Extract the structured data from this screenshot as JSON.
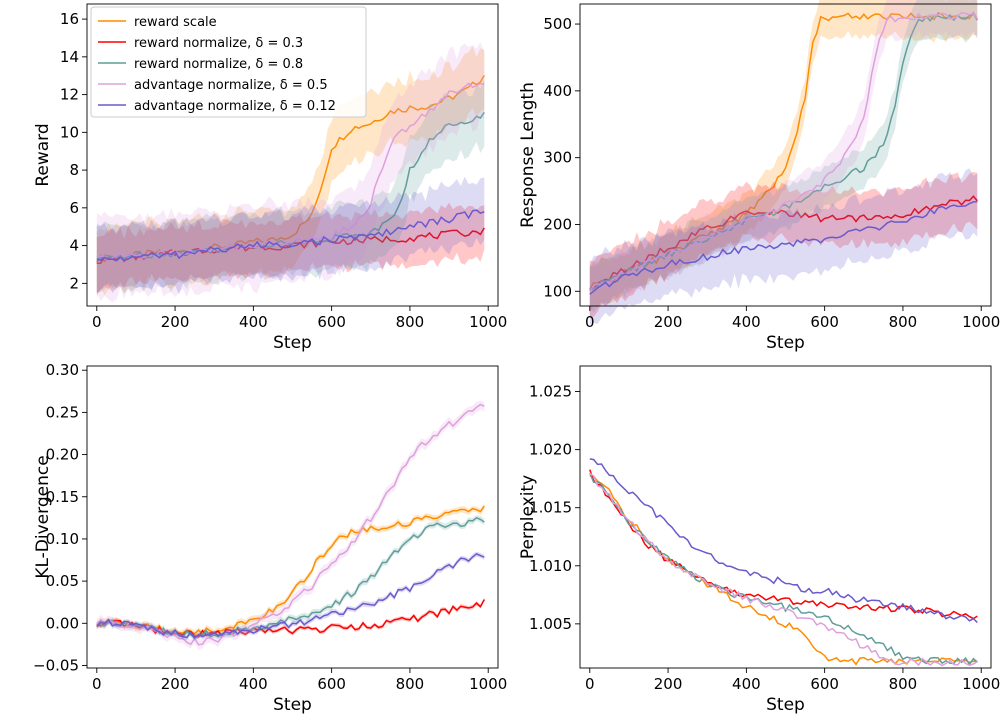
{
  "legend": {
    "entries": [
      {
        "label": "reward scale",
        "color": "#ff8c00"
      },
      {
        "label": "reward normalize, δ = 0.3",
        "color": "#ff0000"
      },
      {
        "label": "reward normalize, δ = 0.8",
        "color": "#5f9e99"
      },
      {
        "label": "advantage normalize, δ = 0.5",
        "color": "#dda0dd"
      },
      {
        "label": "advantage normalize, δ = 0.12",
        "color": "#6a5acd"
      }
    ],
    "placement": "top-left of first panel"
  },
  "chart_data": [
    {
      "type": "line",
      "xlabel": "Step",
      "ylabel": "Reward",
      "xlim": [
        -25,
        1025
      ],
      "ylim": [
        0.8,
        16.8
      ],
      "xticks": [
        0,
        200,
        400,
        600,
        800,
        1000
      ],
      "xtick_labels": [
        "0",
        "200",
        "400",
        "600",
        "800",
        "1000"
      ],
      "yticks": [
        2,
        4,
        6,
        8,
        10,
        12,
        14,
        16
      ],
      "ytick_labels": [
        "2",
        "4",
        "6",
        "8",
        "10",
        "12",
        "14",
        "16"
      ],
      "has_legend": true,
      "series": [
        {
          "name": "reward scale",
          "color": "#ff8c00",
          "band": 0.12,
          "x": [
            0,
            50,
            100,
            150,
            200,
            250,
            300,
            350,
            400,
            450,
            500,
            550,
            580,
            600,
            650,
            700,
            750,
            800,
            850,
            900,
            950,
            1000
          ],
          "y": [
            3.3,
            3.4,
            3.5,
            3.6,
            3.6,
            3.8,
            3.9,
            4.0,
            4.2,
            4.3,
            4.6,
            5.6,
            7.6,
            9.2,
            10.2,
            10.5,
            11.1,
            11.3,
            11.4,
            11.8,
            12.3,
            13.2
          ]
        },
        {
          "name": "reward normalize, δ = 0.3",
          "color": "#ff0000",
          "band": 0.1,
          "x": [
            0,
            100,
            200,
            300,
            400,
            500,
            600,
            700,
            800,
            900,
            1000
          ],
          "y": [
            3.2,
            3.4,
            3.6,
            3.8,
            3.9,
            4.0,
            4.2,
            4.3,
            4.4,
            4.6,
            4.8
          ]
        },
        {
          "name": "reward normalize, δ = 0.8",
          "color": "#5f9e99",
          "band": 0.12,
          "x": [
            0,
            100,
            200,
            300,
            400,
            500,
            600,
            700,
            750,
            780,
            800,
            850,
            900,
            950,
            1000
          ],
          "y": [
            3.3,
            3.5,
            3.6,
            3.8,
            4.0,
            4.2,
            4.4,
            4.7,
            5.3,
            6.5,
            8.0,
            9.5,
            10.4,
            10.7,
            11.0
          ]
        },
        {
          "name": "advantage normalize, δ = 0.5",
          "color": "#dda0dd",
          "band": 0.15,
          "x": [
            0,
            100,
            200,
            300,
            400,
            500,
            600,
            650,
            700,
            720,
            750,
            800,
            850,
            900,
            950,
            1000
          ],
          "y": [
            3.3,
            3.5,
            3.6,
            3.8,
            4.0,
            4.2,
            4.5,
            5.0,
            6.2,
            7.6,
            9.4,
            10.4,
            11.2,
            12.0,
            12.6,
            12.4
          ]
        },
        {
          "name": "advantage normalize, δ = 0.12",
          "color": "#6a5acd",
          "band": 0.12,
          "x": [
            0,
            100,
            200,
            300,
            400,
            500,
            600,
            700,
            800,
            900,
            1000
          ],
          "y": [
            3.2,
            3.4,
            3.5,
            3.8,
            4.0,
            4.1,
            4.3,
            4.5,
            5.0,
            5.4,
            5.9
          ]
        }
      ]
    },
    {
      "type": "line",
      "xlabel": "Step",
      "ylabel": "Response Length",
      "xlim": [
        -25,
        1025
      ],
      "ylim": [
        78,
        530
      ],
      "xticks": [
        0,
        200,
        400,
        600,
        800,
        1000
      ],
      "xtick_labels": [
        "0",
        "200",
        "400",
        "600",
        "800",
        "1000"
      ],
      "yticks": [
        100,
        200,
        300,
        400,
        500
      ],
      "ytick_labels": [
        "100",
        "200",
        "300",
        "400",
        "500"
      ],
      "has_legend": false,
      "series": [
        {
          "name": "reward scale",
          "color": "#ff8c00",
          "band": 0.08,
          "x": [
            0,
            100,
            200,
            300,
            400,
            450,
            500,
            520,
            550,
            570,
            590,
            620,
            700,
            800,
            900,
            1000
          ],
          "y": [
            105,
            130,
            155,
            185,
            215,
            245,
            285,
            320,
            390,
            470,
            508,
            511,
            512,
            512,
            512,
            512
          ]
        },
        {
          "name": "reward normalize, δ = 0.3",
          "color": "#ff0000",
          "band": 0.1,
          "x": [
            0,
            100,
            200,
            300,
            400,
            500,
            600,
            700,
            800,
            900,
            1000
          ],
          "y": [
            105,
            135,
            165,
            195,
            215,
            218,
            208,
            210,
            215,
            230,
            240
          ]
        },
        {
          "name": "reward normalize, δ = 0.8",
          "color": "#5f9e99",
          "band": 0.08,
          "x": [
            0,
            100,
            200,
            300,
            400,
            500,
            600,
            700,
            750,
            780,
            800,
            830,
            870,
            900,
            950,
            1000
          ],
          "y": [
            105,
            130,
            155,
            180,
            205,
            225,
            255,
            285,
            320,
            380,
            440,
            500,
            510,
            511,
            511,
            510
          ]
        },
        {
          "name": "advantage normalize, δ = 0.5",
          "color": "#dda0dd",
          "band": 0.08,
          "x": [
            0,
            100,
            200,
            300,
            400,
            500,
            600,
            650,
            700,
            720,
            740,
            760,
            800,
            850,
            900,
            1000
          ],
          "y": [
            105,
            130,
            155,
            180,
            205,
            230,
            265,
            300,
            360,
            420,
            480,
            505,
            511,
            512,
            512,
            511
          ]
        },
        {
          "name": "advantage normalize, δ = 0.12",
          "color": "#6a5acd",
          "band": 0.12,
          "x": [
            0,
            100,
            200,
            300,
            400,
            500,
            600,
            700,
            800,
            900,
            1000
          ],
          "y": [
            100,
            125,
            140,
            152,
            165,
            170,
            178,
            190,
            205,
            222,
            240
          ]
        }
      ]
    },
    {
      "type": "line",
      "xlabel": "Step",
      "ylabel": "KL-Divergence",
      "xlim": [
        -25,
        1025
      ],
      "ylim": [
        -0.053,
        0.305
      ],
      "xticks": [
        0,
        200,
        400,
        600,
        800,
        1000
      ],
      "xtick_labels": [
        "0",
        "200",
        "400",
        "600",
        "800",
        "1000"
      ],
      "yticks": [
        -0.05,
        0.0,
        0.05,
        0.1,
        0.15,
        0.2,
        0.25,
        0.3
      ],
      "ytick_labels": [
        "−0.05",
        "0.00",
        "0.05",
        "0.10",
        "0.15",
        "0.20",
        "0.25",
        "0.30"
      ],
      "has_legend": false,
      "series": [
        {
          "name": "reward scale",
          "color": "#ff8c00",
          "band": 0.012,
          "x": [
            0,
            50,
            100,
            150,
            200,
            250,
            300,
            350,
            400,
            450,
            500,
            550,
            600,
            650,
            700,
            750,
            800,
            850,
            900,
            950,
            1000
          ],
          "y": [
            0.0,
            0.0,
            -0.002,
            -0.006,
            -0.01,
            -0.01,
            -0.008,
            -0.003,
            0.005,
            0.015,
            0.035,
            0.065,
            0.095,
            0.108,
            0.113,
            0.115,
            0.12,
            0.125,
            0.13,
            0.133,
            0.135
          ]
        },
        {
          "name": "reward normalize, δ = 0.3",
          "color": "#ff0000",
          "band": 0.008,
          "x": [
            0,
            50,
            100,
            150,
            200,
            250,
            300,
            350,
            400,
            450,
            500,
            550,
            600,
            650,
            700,
            750,
            800,
            850,
            900,
            950,
            1000
          ],
          "y": [
            0.0,
            0.0,
            -0.003,
            -0.008,
            -0.012,
            -0.013,
            -0.012,
            -0.011,
            -0.01,
            -0.009,
            -0.008,
            -0.007,
            -0.006,
            -0.004,
            -0.002,
            0.001,
            0.004,
            0.01,
            0.015,
            0.02,
            0.025
          ]
        },
        {
          "name": "reward normalize, δ = 0.8",
          "color": "#5f9e99",
          "band": 0.012,
          "x": [
            0,
            50,
            100,
            150,
            200,
            250,
            300,
            350,
            400,
            450,
            500,
            550,
            600,
            650,
            700,
            750,
            800,
            850,
            900,
            950,
            1000
          ],
          "y": [
            0.0,
            0.0,
            -0.002,
            -0.008,
            -0.012,
            -0.014,
            -0.012,
            -0.009,
            -0.005,
            -0.001,
            0.005,
            0.012,
            0.022,
            0.035,
            0.055,
            0.078,
            0.098,
            0.112,
            0.118,
            0.12,
            0.125
          ]
        },
        {
          "name": "advantage normalize, δ = 0.5",
          "color": "#dda0dd",
          "band": 0.018,
          "x": [
            0,
            50,
            100,
            150,
            200,
            250,
            300,
            350,
            400,
            450,
            500,
            550,
            600,
            650,
            700,
            750,
            800,
            850,
            900,
            950,
            1000
          ],
          "y": [
            0.0,
            0.0,
            -0.003,
            -0.01,
            -0.018,
            -0.022,
            -0.02,
            -0.012,
            -0.002,
            0.01,
            0.025,
            0.045,
            0.07,
            0.095,
            0.125,
            0.16,
            0.195,
            0.22,
            0.235,
            0.248,
            0.26
          ]
        },
        {
          "name": "advantage normalize, δ = 0.12",
          "color": "#6a5acd",
          "band": 0.01,
          "x": [
            0,
            50,
            100,
            150,
            200,
            250,
            300,
            350,
            400,
            450,
            500,
            550,
            600,
            650,
            700,
            750,
            800,
            850,
            900,
            950,
            1000
          ],
          "y": [
            0.0,
            0.0,
            -0.002,
            -0.008,
            -0.012,
            -0.014,
            -0.013,
            -0.011,
            -0.008,
            -0.005,
            -0.001,
            0.004,
            0.01,
            0.016,
            0.023,
            0.032,
            0.042,
            0.055,
            0.068,
            0.078,
            0.083
          ]
        }
      ]
    },
    {
      "type": "line",
      "xlabel": "Step",
      "ylabel": "Perplexity",
      "xlim": [
        -25,
        1025
      ],
      "ylim": [
        1.0012,
        1.0272
      ],
      "xticks": [
        0,
        200,
        400,
        600,
        800,
        1000
      ],
      "xtick_labels": [
        "0",
        "200",
        "400",
        "600",
        "800",
        "1000"
      ],
      "yticks": [
        1.005,
        1.01,
        1.015,
        1.02,
        1.025
      ],
      "ytick_labels": [
        "1.005",
        "1.010",
        "1.015",
        "1.020",
        "1.025"
      ],
      "has_legend": false,
      "series": [
        {
          "name": "reward scale",
          "color": "#ff8c00",
          "band": 0.0009,
          "x": [
            0,
            50,
            100,
            150,
            200,
            250,
            300,
            350,
            400,
            450,
            500,
            550,
            580,
            600,
            650,
            700,
            800,
            900,
            1000
          ],
          "y": [
            1.018,
            1.0165,
            1.014,
            1.012,
            1.0105,
            1.0095,
            1.0085,
            1.0075,
            1.0065,
            1.0058,
            1.005,
            1.004,
            1.0028,
            1.002,
            1.0018,
            1.0018,
            1.0018,
            1.0018,
            1.0018
          ]
        },
        {
          "name": "reward normalize, δ = 0.3",
          "color": "#ff0000",
          "band": 0.0009,
          "x": [
            0,
            50,
            100,
            150,
            200,
            250,
            300,
            350,
            400,
            450,
            500,
            550,
            600,
            650,
            700,
            750,
            800,
            850,
            900,
            950,
            1000
          ],
          "y": [
            1.018,
            1.016,
            1.0135,
            1.0118,
            1.0105,
            1.0095,
            1.0085,
            1.008,
            1.0075,
            1.0072,
            1.007,
            1.0068,
            1.0067,
            1.0066,
            1.0065,
            1.0064,
            1.0063,
            1.0061,
            1.0059,
            1.0057,
            1.0055
          ]
        },
        {
          "name": "reward normalize, δ = 0.8",
          "color": "#5f9e99",
          "band": 0.0009,
          "x": [
            0,
            50,
            100,
            150,
            200,
            250,
            300,
            350,
            400,
            450,
            500,
            550,
            600,
            650,
            700,
            750,
            800,
            850,
            900,
            1000
          ],
          "y": [
            1.0178,
            1.016,
            1.0138,
            1.012,
            1.0105,
            1.0095,
            1.0085,
            1.0078,
            1.0072,
            1.0068,
            1.0064,
            1.006,
            1.0055,
            1.0048,
            1.004,
            1.003,
            1.0022,
            1.0018,
            1.0018,
            1.0018
          ]
        },
        {
          "name": "advantage normalize, δ = 0.5",
          "color": "#dda0dd",
          "band": 0.001,
          "x": [
            0,
            50,
            100,
            150,
            200,
            250,
            300,
            350,
            400,
            450,
            500,
            550,
            600,
            650,
            700,
            750,
            780,
            800,
            900,
            1000
          ],
          "y": [
            1.0178,
            1.016,
            1.0138,
            1.012,
            1.0105,
            1.0095,
            1.0085,
            1.0078,
            1.0072,
            1.0066,
            1.006,
            1.0055,
            1.0048,
            1.004,
            1.003,
            1.0022,
            1.0018,
            1.0017,
            1.0017,
            1.0017
          ]
        },
        {
          "name": "advantage normalize, δ = 0.12",
          "color": "#6a5acd",
          "band": 0.0012,
          "x": [
            0,
            50,
            100,
            150,
            200,
            250,
            300,
            350,
            400,
            450,
            500,
            550,
            600,
            650,
            700,
            750,
            800,
            850,
            900,
            950,
            1000
          ],
          "y": [
            1.0195,
            1.018,
            1.0165,
            1.015,
            1.0135,
            1.012,
            1.011,
            1.0102,
            1.0095,
            1.009,
            1.0085,
            1.008,
            1.0078,
            1.0074,
            1.007,
            1.0067,
            1.0064,
            1.0061,
            1.0058,
            1.0055,
            1.0052
          ]
        }
      ]
    }
  ]
}
